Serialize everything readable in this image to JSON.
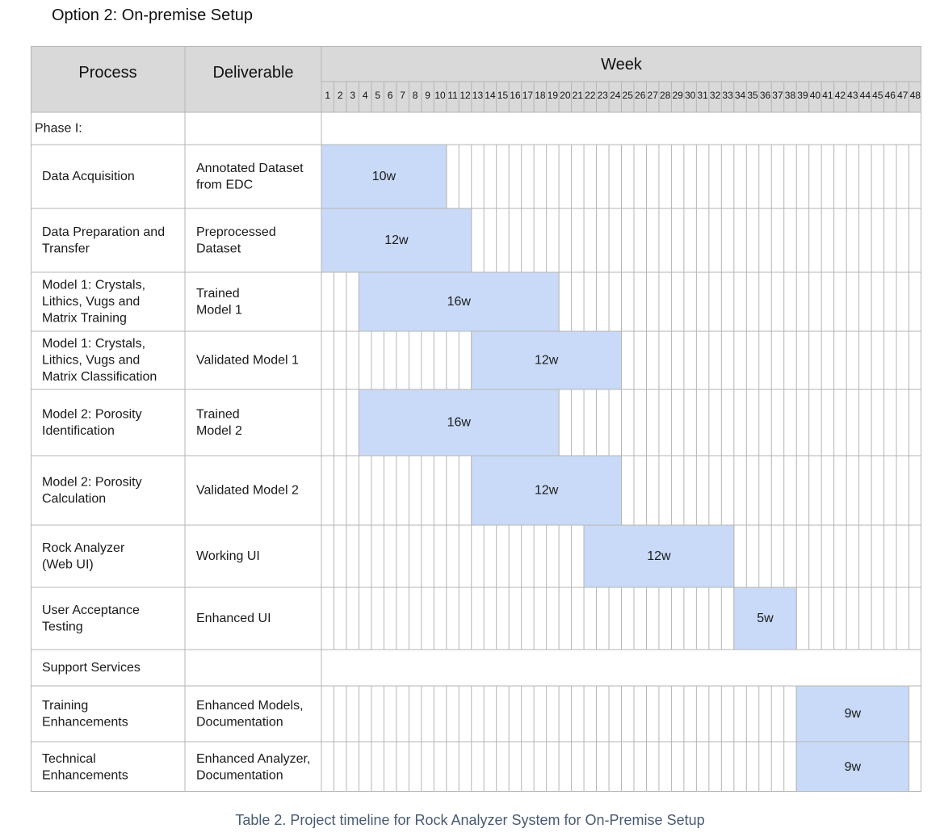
{
  "title": "Option 2: On-premise Setup",
  "caption": "Table 2. Project timeline for Rock Analyzer System for On-Premise Setup",
  "colors": {
    "header_bg": "#d9d9d9",
    "grid_line": "#b5b5b5",
    "bar_fill": "#c9daf8",
    "page_bg": "#ffffff"
  },
  "table": {
    "headers": {
      "process": "Process",
      "deliverable": "Deliverable",
      "week": "Week"
    },
    "total_weeks": 48,
    "weeks": [
      "1",
      "2",
      "3",
      "4",
      "5",
      "6",
      "7",
      "8",
      "9",
      "10",
      "11",
      "12",
      "13",
      "14",
      "15",
      "16",
      "17",
      "18",
      "19",
      "20",
      "21",
      "22",
      "23",
      "24",
      "25",
      "26",
      "27",
      "28",
      "29",
      "30",
      "31",
      "32",
      "33",
      "34",
      "35",
      "36",
      "37",
      "38",
      "39",
      "40",
      "41",
      "42",
      "43",
      "44",
      "45",
      "46",
      "47",
      "48"
    ],
    "rows": [
      {
        "kind": "section",
        "label": [
          "Phase I:"
        ]
      },
      {
        "kind": "task",
        "process": [
          "Data Acquisition"
        ],
        "deliverable": [
          "Annotated Dataset",
          "from EDC"
        ],
        "bar": {
          "start": 1,
          "weeks": 10,
          "label": "10w"
        }
      },
      {
        "kind": "task",
        "process": [
          "Data Preparation and",
          "Transfer"
        ],
        "deliverable": [
          "Preprocessed",
          "Dataset"
        ],
        "bar": {
          "start": 1,
          "weeks": 12,
          "label": "12w"
        }
      },
      {
        "kind": "task",
        "process": [
          "Model 1: Crystals,",
          "Lithics, Vugs and",
          "Matrix Training"
        ],
        "deliverable": [
          "Trained",
          "Model 1"
        ],
        "bar": {
          "start": 4,
          "weeks": 16,
          "label": "16w"
        }
      },
      {
        "kind": "task",
        "process": [
          "Model 1: Crystals,",
          "Lithics, Vugs and",
          "Matrix Classification"
        ],
        "deliverable": [
          "Validated Model 1"
        ],
        "bar": {
          "start": 13,
          "weeks": 12,
          "label": "12w"
        }
      },
      {
        "kind": "task",
        "process": [
          "Model 2: Porosity",
          "Identification"
        ],
        "deliverable": [
          "Trained",
          "Model 2"
        ],
        "bar": {
          "start": 4,
          "weeks": 16,
          "label": "16w"
        }
      },
      {
        "kind": "task",
        "process": [
          "Model 2: Porosity",
          "Calculation"
        ],
        "deliverable": [
          "Validated Model 2"
        ],
        "bar": {
          "start": 13,
          "weeks": 12,
          "label": "12w"
        }
      },
      {
        "kind": "task",
        "process": [
          "Rock Analyzer",
          "(Web UI)"
        ],
        "deliverable": [
          "Working UI"
        ],
        "bar": {
          "start": 22,
          "weeks": 12,
          "label": "12w"
        }
      },
      {
        "kind": "task",
        "process": [
          "User Acceptance",
          "Testing"
        ],
        "deliverable": [
          "Enhanced UI"
        ],
        "bar": {
          "start": 34,
          "weeks": 5,
          "label": "5w"
        }
      },
      {
        "kind": "section",
        "label": [
          "Support Services"
        ]
      },
      {
        "kind": "task",
        "process": [
          "Training",
          "Enhancements"
        ],
        "deliverable": [
          "Enhanced Models,",
          "Documentation"
        ],
        "bar": {
          "start": 39,
          "weeks": 9,
          "label": "9w"
        }
      },
      {
        "kind": "task",
        "process": [
          "Technical",
          "Enhancements"
        ],
        "deliverable": [
          "Enhanced Analyzer,",
          "Documentation"
        ],
        "bar": {
          "start": 39,
          "weeks": 9,
          "label": "9w"
        }
      }
    ]
  }
}
